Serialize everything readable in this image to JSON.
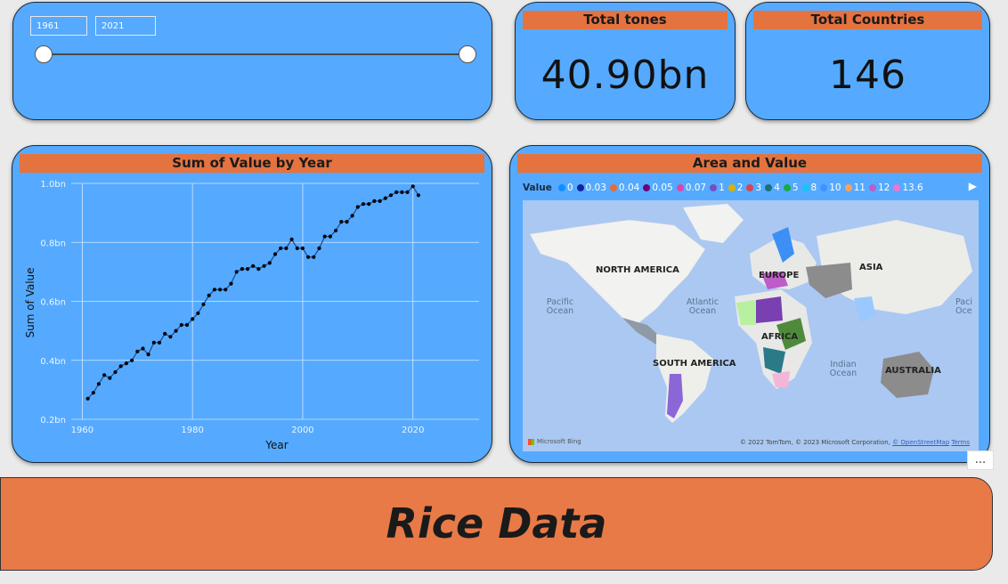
{
  "slicer": {
    "start": "1961",
    "end": "2021"
  },
  "kpis": [
    {
      "title": "Total tones",
      "value": "40.90bn"
    },
    {
      "title": "Total Countries",
      "value": "146"
    }
  ],
  "line_chart": {
    "title": "Sum of Value by Year",
    "xlabel": "Year",
    "ylabel": "Sum of Value",
    "x_ticks": [
      "1960",
      "1980",
      "2000",
      "2020"
    ],
    "y_ticks": [
      "0.2bn",
      "0.4bn",
      "0.6bn",
      "0.8bn",
      "1.0bn"
    ],
    "line_color": "#1f4e9a"
  },
  "chart_data": {
    "type": "line",
    "title": "Sum of Value by Year",
    "xlabel": "Year",
    "ylabel": "Sum of Value",
    "xlim": [
      1958,
      2032
    ],
    "ylim": [
      0.2,
      1.0
    ],
    "grid": true,
    "x": [
      1961,
      1962,
      1963,
      1964,
      1965,
      1966,
      1967,
      1968,
      1969,
      1970,
      1971,
      1972,
      1973,
      1974,
      1975,
      1976,
      1977,
      1978,
      1979,
      1980,
      1981,
      1982,
      1983,
      1984,
      1985,
      1986,
      1987,
      1988,
      1989,
      1990,
      1991,
      1992,
      1993,
      1994,
      1995,
      1996,
      1997,
      1998,
      1999,
      2000,
      2001,
      2002,
      2003,
      2004,
      2005,
      2006,
      2007,
      2008,
      2009,
      2010,
      2011,
      2012,
      2013,
      2014,
      2015,
      2016,
      2017,
      2018,
      2019,
      2020,
      2021
    ],
    "y": [
      0.27,
      0.29,
      0.32,
      0.35,
      0.34,
      0.36,
      0.38,
      0.39,
      0.4,
      0.43,
      0.44,
      0.42,
      0.46,
      0.46,
      0.49,
      0.48,
      0.5,
      0.52,
      0.52,
      0.54,
      0.56,
      0.59,
      0.62,
      0.64,
      0.64,
      0.64,
      0.66,
      0.7,
      0.71,
      0.71,
      0.72,
      0.71,
      0.72,
      0.73,
      0.76,
      0.78,
      0.78,
      0.81,
      0.78,
      0.78,
      0.75,
      0.75,
      0.78,
      0.82,
      0.82,
      0.84,
      0.87,
      0.87,
      0.89,
      0.92,
      0.93,
      0.93,
      0.94,
      0.94,
      0.95,
      0.96,
      0.97,
      0.97,
      0.97,
      0.99,
      0.96
    ]
  },
  "map": {
    "title": "Area and Value",
    "legend_title": "Value",
    "legend": [
      {
        "label": "0",
        "color": "#118dff"
      },
      {
        "label": "0.03",
        "color": "#12239e"
      },
      {
        "label": "0.04",
        "color": "#e66c37"
      },
      {
        "label": "0.05",
        "color": "#6b007b"
      },
      {
        "label": "0.07",
        "color": "#e044a7"
      },
      {
        "label": "1",
        "color": "#744ec2"
      },
      {
        "label": "2",
        "color": "#d9b300"
      },
      {
        "label": "3",
        "color": "#d64550"
      },
      {
        "label": "4",
        "color": "#197278"
      },
      {
        "label": "5",
        "color": "#1aab40"
      },
      {
        "label": "8",
        "color": "#15c6f4"
      },
      {
        "label": "10",
        "color": "#4092ff"
      },
      {
        "label": "11",
        "color": "#ffa058"
      },
      {
        "label": "12",
        "color": "#be5dc9"
      },
      {
        "label": "13.6",
        "color": "#f472d0"
      }
    ],
    "continents": [
      "NORTH AMERICA",
      "EUROPE",
      "ASIA",
      "AFRICA",
      "SOUTH AMERICA",
      "AUSTRALIA"
    ],
    "oceans": [
      "Pacific Ocean",
      "Atlantic Ocean",
      "Indian Ocean",
      "Paci Oce"
    ],
    "bing": "Microsoft Bing",
    "attribution": "© 2022 TomTom, © 2023 Microsoft Corporation,",
    "attribution_osm": "© OpenStreetMap",
    "attribution_terms": "Terms"
  },
  "more_options": "...",
  "banner": {
    "title": "Rice Data"
  }
}
